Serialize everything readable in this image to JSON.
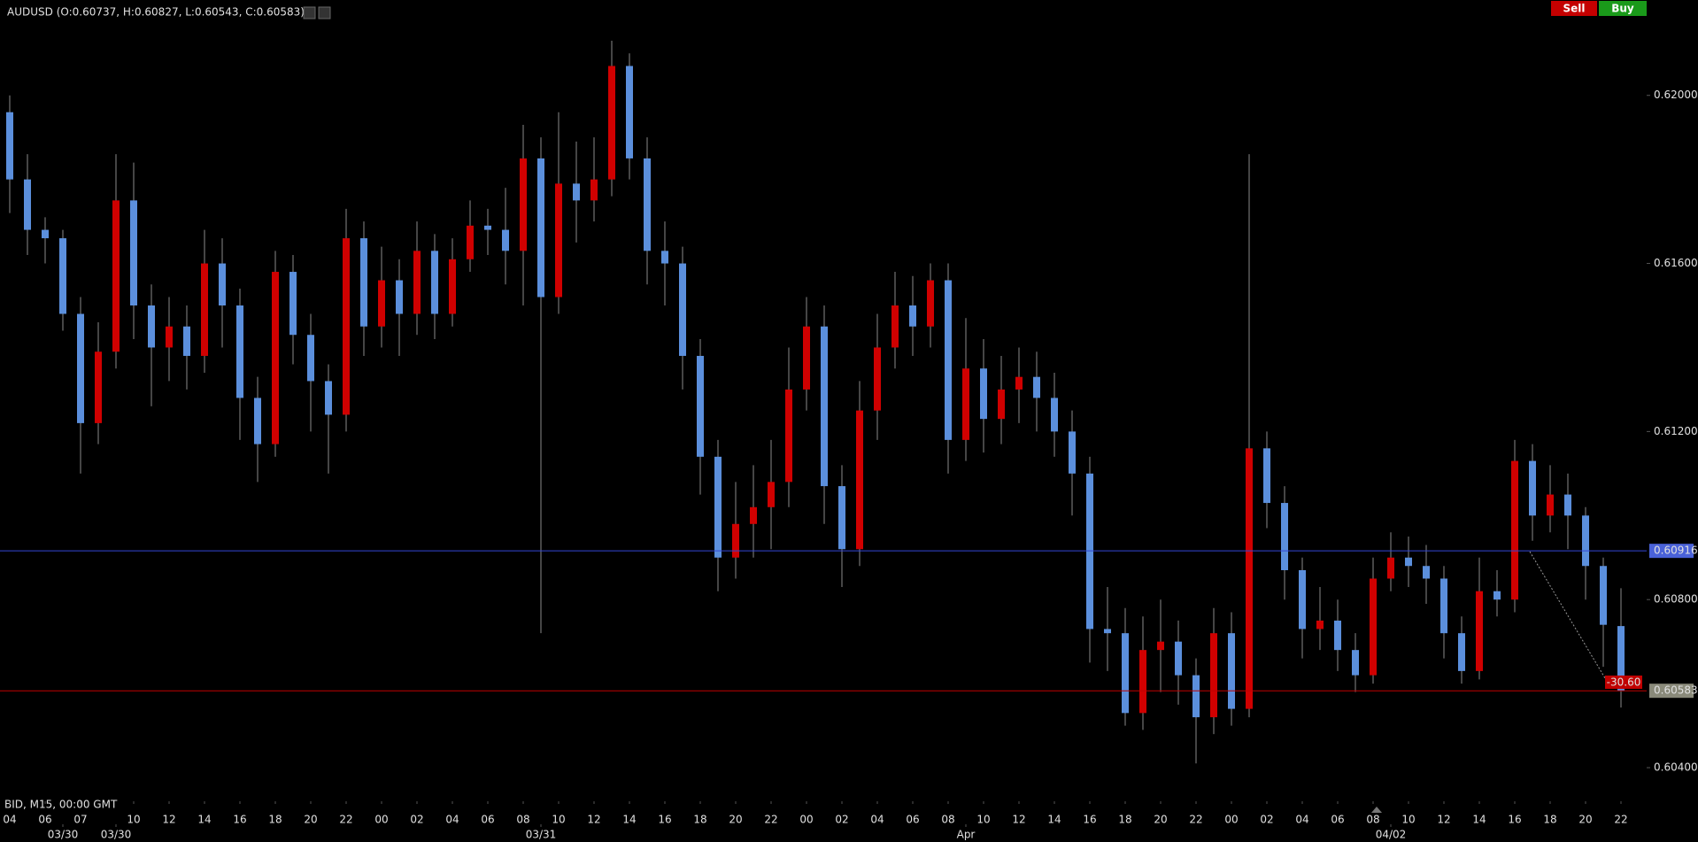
{
  "chart_data": {
    "type": "candlestick",
    "title": "AUDUSD (O:0.60737, H:0.60827, L:0.60543, C:0.60583)",
    "timeframe_label": "BID, M15, 00:00 GMT",
    "buttons": [
      "Sell",
      "Buy"
    ],
    "up_color": "#d00000",
    "down_color": "#5b8fdc",
    "open": [
      0.6196,
      0.618,
      0.6168,
      0.6166,
      0.6148,
      0.6122,
      0.6139,
      0.6175,
      0.615,
      0.614,
      0.6145,
      0.6138,
      0.616,
      0.615,
      0.6128,
      0.6117,
      0.6158,
      0.6143,
      0.6132,
      0.6124,
      0.6166,
      0.6145,
      0.6156,
      0.6148,
      0.6163,
      0.6148,
      0.6161,
      0.6169,
      0.6168,
      0.6163,
      0.6185,
      0.6152,
      0.6179,
      0.6175,
      0.618,
      0.6207,
      0.6185,
      0.6163,
      0.616,
      0.6138,
      0.6114,
      0.609,
      0.6098,
      0.6102,
      0.6108,
      0.613,
      0.6145,
      0.6107,
      0.6092,
      0.6125,
      0.614,
      0.615,
      0.6145,
      0.6156,
      0.6118,
      0.6135,
      0.6123,
      0.613,
      0.6133,
      0.6128,
      0.612,
      0.611,
      0.6073,
      0.6072,
      0.6053,
      0.6068,
      0.607,
      0.6062,
      0.6052,
      0.6072,
      0.6054,
      0.6116,
      0.6103,
      0.6087,
      0.6073,
      0.6075,
      0.6068,
      0.6062,
      0.6085,
      0.609,
      0.6088,
      0.6085,
      0.6072,
      0.6063,
      0.6082,
      0.608,
      0.6113,
      0.61,
      0.6105,
      0.61,
      0.6088,
      0.60737
    ],
    "high": [
      0.62,
      0.6186,
      0.6171,
      0.6168,
      0.6152,
      0.6146,
      0.6186,
      0.6184,
      0.6155,
      0.6152,
      0.615,
      0.6168,
      0.6166,
      0.6154,
      0.6133,
      0.6163,
      0.6162,
      0.6148,
      0.6136,
      0.6173,
      0.617,
      0.6164,
      0.6161,
      0.617,
      0.6167,
      0.6166,
      0.6175,
      0.6173,
      0.6178,
      0.6193,
      0.619,
      0.6196,
      0.6189,
      0.619,
      0.6213,
      0.621,
      0.619,
      0.617,
      0.6164,
      0.6142,
      0.6118,
      0.6108,
      0.6112,
      0.6118,
      0.614,
      0.6152,
      0.615,
      0.6112,
      0.6132,
      0.6148,
      0.6158,
      0.6157,
      0.616,
      0.616,
      0.6147,
      0.6142,
      0.6138,
      0.614,
      0.6139,
      0.6134,
      0.6125,
      0.6114,
      0.6083,
      0.6078,
      0.6076,
      0.608,
      0.6075,
      0.6066,
      0.6078,
      0.6077,
      0.6186,
      0.612,
      0.6107,
      0.609,
      0.6083,
      0.608,
      0.6072,
      0.609,
      0.6096,
      0.6095,
      0.6093,
      0.6088,
      0.6076,
      0.609,
      0.6087,
      0.6118,
      0.6117,
      0.6112,
      0.611,
      0.6102,
      0.609,
      0.60827
    ],
    "low": [
      0.6172,
      0.6162,
      0.616,
      0.6144,
      0.611,
      0.6117,
      0.6135,
      0.6142,
      0.6126,
      0.6132,
      0.613,
      0.6134,
      0.614,
      0.6118,
      0.6108,
      0.6114,
      0.6136,
      0.612,
      0.611,
      0.612,
      0.6138,
      0.614,
      0.6138,
      0.6143,
      0.6142,
      0.6145,
      0.6158,
      0.6162,
      0.6155,
      0.615,
      0.6072,
      0.6148,
      0.6165,
      0.617,
      0.6176,
      0.618,
      0.6155,
      0.615,
      0.613,
      0.6105,
      0.6082,
      0.6085,
      0.609,
      0.6092,
      0.6102,
      0.6125,
      0.6098,
      0.6083,
      0.6088,
      0.6118,
      0.6135,
      0.6138,
      0.614,
      0.611,
      0.6113,
      0.6115,
      0.6117,
      0.6122,
      0.612,
      0.6114,
      0.61,
      0.6065,
      0.6063,
      0.605,
      0.6049,
      0.6058,
      0.6055,
      0.6041,
      0.6048,
      0.605,
      0.6052,
      0.6097,
      0.608,
      0.6066,
      0.6068,
      0.6063,
      0.6058,
      0.606,
      0.6082,
      0.6083,
      0.6079,
      0.6066,
      0.606,
      0.6061,
      0.6076,
      0.6077,
      0.6094,
      0.6096,
      0.6092,
      0.608,
      0.6064,
      0.60543
    ],
    "close": [
      0.618,
      0.6168,
      0.6166,
      0.6148,
      0.6122,
      0.6139,
      0.6175,
      0.615,
      0.614,
      0.6145,
      0.6138,
      0.616,
      0.615,
      0.6128,
      0.6117,
      0.6158,
      0.6143,
      0.6132,
      0.6124,
      0.6166,
      0.6145,
      0.6156,
      0.6148,
      0.6163,
      0.6148,
      0.6161,
      0.6169,
      0.6168,
      0.6163,
      0.6185,
      0.6152,
      0.6179,
      0.6175,
      0.618,
      0.6207,
      0.6185,
      0.6163,
      0.616,
      0.6138,
      0.6114,
      0.609,
      0.6098,
      0.6102,
      0.6108,
      0.613,
      0.6145,
      0.6107,
      0.6092,
      0.6125,
      0.614,
      0.615,
      0.6145,
      0.6156,
      0.6118,
      0.6135,
      0.6123,
      0.613,
      0.6133,
      0.6128,
      0.612,
      0.611,
      0.6073,
      0.6072,
      0.6053,
      0.6068,
      0.607,
      0.6062,
      0.6052,
      0.6072,
      0.6054,
      0.6116,
      0.6103,
      0.6087,
      0.6073,
      0.6075,
      0.6068,
      0.6062,
      0.6085,
      0.609,
      0.6088,
      0.6085,
      0.6072,
      0.6063,
      0.6082,
      0.608,
      0.6113,
      0.61,
      0.6105,
      0.61,
      0.6088,
      0.6074,
      0.60583
    ],
    "ylim": [
      0.6032,
      0.62227
    ],
    "yticks": [
      {
        "value": 0.604,
        "label": "0.60400"
      },
      {
        "value": 0.608,
        "label": "0.60800"
      },
      {
        "value": 0.612,
        "label": "0.61200"
      },
      {
        "value": 0.616,
        "label": "0.61600"
      },
      {
        "value": 0.62,
        "label": "0.62000"
      }
    ],
    "xlim": [
      -0.55,
      92.45
    ],
    "xticks": [
      {
        "value": 0,
        "label": "04"
      },
      {
        "value": 2,
        "label": "06"
      },
      {
        "value": 4,
        "label": "07"
      },
      {
        "value": 7,
        "label": "10"
      },
      {
        "value": 9,
        "label": "12"
      },
      {
        "value": 11,
        "label": "14"
      },
      {
        "value": 13,
        "label": "16"
      },
      {
        "value": 15,
        "label": "18"
      },
      {
        "value": 17,
        "label": "20"
      },
      {
        "value": 19,
        "label": "22"
      },
      {
        "value": 21,
        "label": "00"
      },
      {
        "value": 23,
        "label": "02"
      },
      {
        "value": 25,
        "label": "04"
      },
      {
        "value": 27,
        "label": "06"
      },
      {
        "value": 29,
        "label": "08"
      },
      {
        "value": 31,
        "label": "10"
      },
      {
        "value": 33,
        "label": "12"
      },
      {
        "value": 35,
        "label": "14"
      },
      {
        "value": 37,
        "label": "16"
      },
      {
        "value": 39,
        "label": "18"
      },
      {
        "value": 41,
        "label": "20"
      },
      {
        "value": 43,
        "label": "22"
      },
      {
        "value": 45,
        "label": "00"
      },
      {
        "value": 47,
        "label": "02"
      },
      {
        "value": 49,
        "label": "04"
      },
      {
        "value": 51,
        "label": "06"
      },
      {
        "value": 53,
        "label": "08"
      },
      {
        "value": 55,
        "label": "10"
      },
      {
        "value": 57,
        "label": "12"
      },
      {
        "value": 59,
        "label": "14"
      },
      {
        "value": 61,
        "label": "16"
      },
      {
        "value": 63,
        "label": "18"
      },
      {
        "value": 65,
        "label": "20"
      },
      {
        "value": 67,
        "label": "22"
      },
      {
        "value": 69,
        "label": "00"
      },
      {
        "value": 71,
        "label": "02"
      },
      {
        "value": 73,
        "label": "04"
      },
      {
        "value": 75,
        "label": "06"
      },
      {
        "value": 77,
        "label": "08"
      },
      {
        "value": 79,
        "label": "10"
      },
      {
        "value": 81,
        "label": "12"
      },
      {
        "value": 83,
        "label": "14"
      },
      {
        "value": 85,
        "label": "16"
      },
      {
        "value": 87,
        "label": "18"
      },
      {
        "value": 89,
        "label": "20"
      },
      {
        "value": 91,
        "label": "22"
      }
    ],
    "date_ticks": [
      {
        "value": 3,
        "label": "03/30"
      },
      {
        "value": 6,
        "label": "03/30"
      },
      {
        "value": 30,
        "label": "03/31"
      },
      {
        "value": 54,
        "label": "Apr"
      },
      {
        "value": 78,
        "label": "04/02"
      }
    ],
    "price_lines": [
      {
        "value": 0.60916,
        "color": "#3347d6",
        "label_color": "#4a62d8"
      },
      {
        "value": 0.60583,
        "color": "#c00000",
        "label_color": "#8a8a7a"
      }
    ],
    "trend_label": "-30.60"
  }
}
